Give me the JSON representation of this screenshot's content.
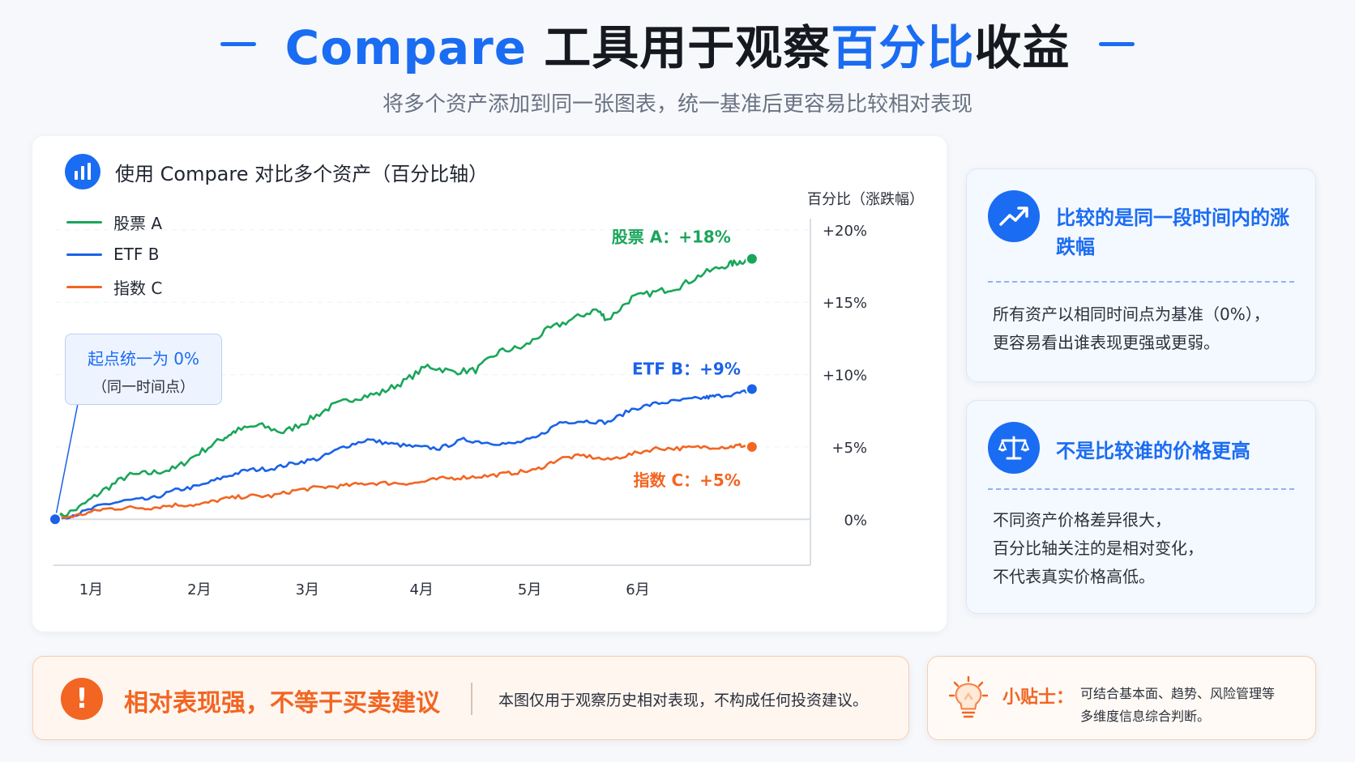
{
  "header": {
    "title_part1": "Compare ",
    "title_part2": "工具用于观察",
    "title_part3": "百分比",
    "title_part4": "收益",
    "subtitle": "将多个资产添加到同一张图表，统一基准后更容易比较相对表现"
  },
  "chart_panel": {
    "title": "使用 Compare 对比多个资产（百分比轴）",
    "icon": "bar-chart-icon",
    "callout_main": "起点统一为 0%",
    "callout_sub": "（同一时间点）"
  },
  "chart_data": {
    "type": "line",
    "ylabel": "百分比（涨跌幅）",
    "ylim": [
      -0.6,
      21
    ],
    "y_ticks": [
      "+20%",
      "+15%",
      "+10%",
      "+5%",
      "0%"
    ],
    "y_tick_values": [
      20,
      15,
      10,
      5,
      0
    ],
    "x_ticks": [
      "1月",
      "2月",
      "3月",
      "4月",
      "5月",
      "6月"
    ],
    "x_tick_positions": [
      0.3,
      1.2,
      2.1,
      3.05,
      3.95,
      4.85
    ],
    "xlim": [
      0,
      6.3
    ],
    "legend_position": "top-left",
    "series": [
      {
        "name": "股票 A",
        "color": "#19a65a",
        "end_label": "股票 A：+18%",
        "points": [
          [
            0,
            0
          ],
          [
            0.2,
            0.8
          ],
          [
            0.4,
            2.0
          ],
          [
            0.6,
            3.0
          ],
          [
            0.8,
            3.2
          ],
          [
            1.0,
            3.5
          ],
          [
            1.2,
            4.6
          ],
          [
            1.4,
            5.6
          ],
          [
            1.5,
            6.1
          ],
          [
            1.7,
            6.5
          ],
          [
            1.9,
            6.0
          ],
          [
            2.1,
            6.8
          ],
          [
            2.3,
            7.8
          ],
          [
            2.5,
            8.4
          ],
          [
            2.7,
            8.7
          ],
          [
            2.9,
            9.5
          ],
          [
            3.1,
            10.6
          ],
          [
            3.3,
            10.2
          ],
          [
            3.5,
            10.3
          ],
          [
            3.7,
            11.6
          ],
          [
            3.9,
            11.9
          ],
          [
            4.1,
            13.1
          ],
          [
            4.3,
            13.8
          ],
          [
            4.5,
            14.5
          ],
          [
            4.6,
            13.8
          ],
          [
            4.8,
            15.3
          ],
          [
            5.0,
            15.7
          ],
          [
            5.2,
            16.1
          ],
          [
            5.4,
            17.0
          ],
          [
            5.6,
            17.6
          ],
          [
            5.7,
            17.8
          ],
          [
            5.8,
            18.0
          ]
        ]
      },
      {
        "name": "ETF B",
        "color": "#1a62e8",
        "end_label": "ETF B：+9%",
        "points": [
          [
            0,
            0
          ],
          [
            0.2,
            0.4
          ],
          [
            0.4,
            1.0
          ],
          [
            0.6,
            1.3
          ],
          [
            0.8,
            1.4
          ],
          [
            1.0,
            2.0
          ],
          [
            1.2,
            2.3
          ],
          [
            1.4,
            2.9
          ],
          [
            1.6,
            3.4
          ],
          [
            1.8,
            3.5
          ],
          [
            2.0,
            3.9
          ],
          [
            2.2,
            4.2
          ],
          [
            2.4,
            5.0
          ],
          [
            2.6,
            5.5
          ],
          [
            2.8,
            5.2
          ],
          [
            3.0,
            5.0
          ],
          [
            3.2,
            4.9
          ],
          [
            3.4,
            5.5
          ],
          [
            3.6,
            5.3
          ],
          [
            3.8,
            5.2
          ],
          [
            4.0,
            5.6
          ],
          [
            4.2,
            6.7
          ],
          [
            4.4,
            6.8
          ],
          [
            4.6,
            6.7
          ],
          [
            4.8,
            7.6
          ],
          [
            5.0,
            8.0
          ],
          [
            5.2,
            8.2
          ],
          [
            5.4,
            8.4
          ],
          [
            5.5,
            8.5
          ],
          [
            5.7,
            8.7
          ],
          [
            5.8,
            9.0
          ]
        ]
      },
      {
        "name": "指数 C",
        "color": "#f26522",
        "end_label": "指数 C：+5%",
        "points": [
          [
            0,
            0
          ],
          [
            0.2,
            0.3
          ],
          [
            0.4,
            0.7
          ],
          [
            0.6,
            0.8
          ],
          [
            0.8,
            0.8
          ],
          [
            1.0,
            1.0
          ],
          [
            1.2,
            1.0
          ],
          [
            1.4,
            1.4
          ],
          [
            1.6,
            1.6
          ],
          [
            1.8,
            1.6
          ],
          [
            2.0,
            2.0
          ],
          [
            2.2,
            2.2
          ],
          [
            2.4,
            2.3
          ],
          [
            2.6,
            2.5
          ],
          [
            2.8,
            2.5
          ],
          [
            3.0,
            2.5
          ],
          [
            3.2,
            2.8
          ],
          [
            3.4,
            2.9
          ],
          [
            3.6,
            3.0
          ],
          [
            3.8,
            3.2
          ],
          [
            4.0,
            3.4
          ],
          [
            4.2,
            4.2
          ],
          [
            4.4,
            4.4
          ],
          [
            4.6,
            4.1
          ],
          [
            4.8,
            4.5
          ],
          [
            5.0,
            4.9
          ],
          [
            5.2,
            4.9
          ],
          [
            5.4,
            5.0
          ],
          [
            5.6,
            5.0
          ],
          [
            5.7,
            5.1
          ],
          [
            5.8,
            5.0
          ]
        ]
      }
    ]
  },
  "side_cards": [
    {
      "icon": "trend-up-icon",
      "title": "比较的是同一段时间内的涨跌幅",
      "lines": [
        "所有资产以相同时间点为基准（0%），",
        "更容易看出谁表现更强或更弱。"
      ]
    },
    {
      "icon": "balance-scale-icon",
      "title": "不是比较谁的价格更高",
      "lines": [
        "不同资产价格差异很大，",
        "百分比轴关注的是相对变化，",
        "不代表真实价格高低。"
      ]
    }
  ],
  "warning": {
    "icon": "exclamation-icon",
    "glyph": "!",
    "title": "相对表现强，不等于买卖建议",
    "body": "本图仅用于观察历史相对表现，不构成任何投资建议。"
  },
  "tip": {
    "icon": "lightbulb-icon",
    "label": "小贴士：",
    "lines": [
      "可结合基本面、趋势、风险管理等",
      "多维度信息综合判断。"
    ]
  },
  "colors": {
    "accent": "#1a6cf2",
    "warning": "#f26522"
  }
}
